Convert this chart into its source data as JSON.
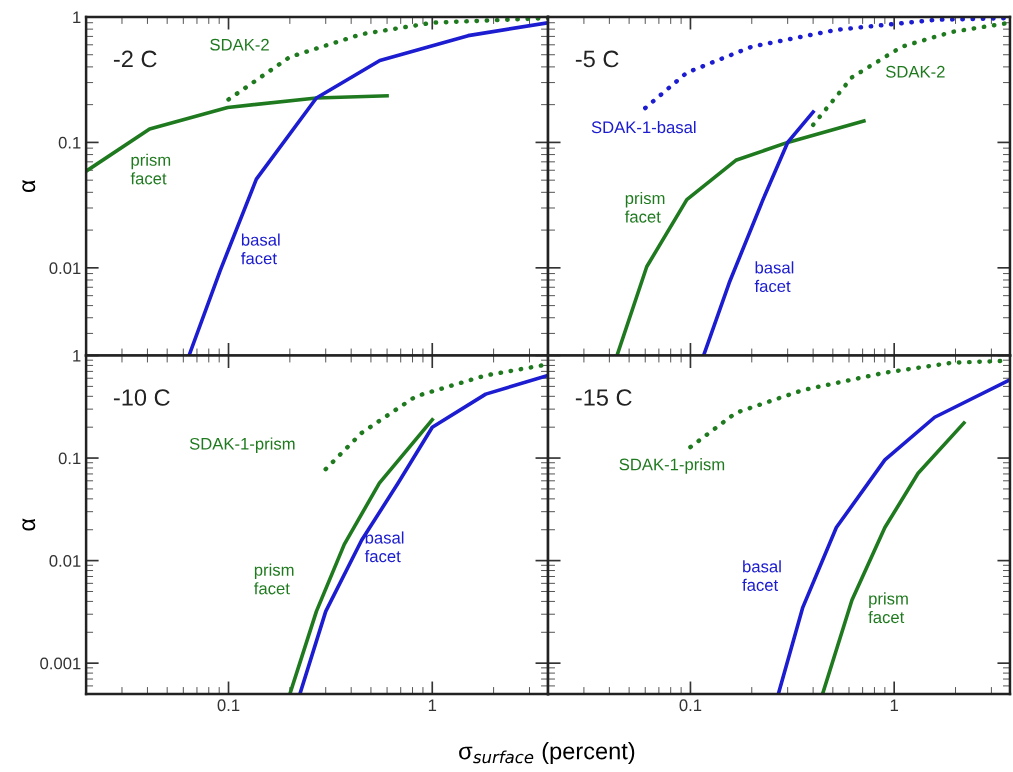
{
  "chart_data": [
    {
      "type": "line",
      "title": "-2 C",
      "ylabel": "α",
      "log": "xy",
      "xlim": [
        0.02,
        3.7
      ],
      "ylim": [
        0.002,
        1
      ],
      "xticks": [
        0.1,
        1
      ],
      "yticks": [
        1,
        0.1,
        0.01
      ],
      "tick_labels": "y",
      "grid": false,
      "legend": false,
      "series": [
        {
          "name": "prism\nfacet",
          "color": "#1f7a1f",
          "line_style": "solid",
          "x": [
            0.02,
            0.041,
            0.099,
            0.27,
            0.6
          ],
          "values": [
            0.059,
            0.128,
            0.19,
            0.226,
            0.235
          ]
        },
        {
          "name": "basal\nfacet",
          "color": "#1c1cd0",
          "line_style": "solid",
          "x": [
            0.064,
            0.091,
            0.137,
            0.27,
            0.553,
            1.5,
            3.7
          ],
          "values": [
            0.002,
            0.0095,
            0.051,
            0.226,
            0.45,
            0.71,
            0.9
          ]
        },
        {
          "name": "SDAK-2",
          "color": "#1f7a1f",
          "line_style": "dotted",
          "x": [
            0.1,
            0.2,
            0.45,
            1.0,
            3.7
          ],
          "values": [
            0.22,
            0.48,
            0.73,
            0.9,
            0.98
          ]
        }
      ]
    },
    {
      "type": "line",
      "title": "-5 C",
      "log": "xy",
      "xlim": [
        0.02,
        3.7
      ],
      "ylim": [
        0.002,
        1
      ],
      "xticks": [
        0.1,
        1
      ],
      "yticks": [
        1,
        0.1,
        0.01
      ],
      "tick_labels": false,
      "grid": false,
      "legend": false,
      "series": [
        {
          "name": "SDAK-1-basal",
          "color": "#1c1cd0",
          "line_style": "dotted",
          "x": [
            0.06,
            0.096,
            0.2,
            0.52,
            1.6,
            3.7
          ],
          "values": [
            0.188,
            0.36,
            0.58,
            0.79,
            0.95,
            0.98
          ]
        },
        {
          "name": "SDAK-2",
          "color": "#1f7a1f",
          "line_style": "dotted",
          "x": [
            0.4,
            0.62,
            1.09,
            1.92,
            3.7
          ],
          "values": [
            0.138,
            0.33,
            0.58,
            0.76,
            0.9
          ]
        },
        {
          "name": "prism\nfacet",
          "color": "#1f7a1f",
          "line_style": "solid",
          "x": [
            0.0436,
            0.061,
            0.096,
            0.167,
            0.3,
            0.71
          ],
          "values": [
            0.002,
            0.0102,
            0.035,
            0.072,
            0.1,
            0.148
          ]
        },
        {
          "name": "basal\nfacet",
          "color": "#1c1cd0",
          "line_style": "solid",
          "x": [
            0.116,
            0.155,
            0.227,
            0.3,
            0.4
          ],
          "values": [
            0.002,
            0.0076,
            0.035,
            0.1,
            0.175
          ]
        }
      ]
    },
    {
      "type": "line",
      "title": "-10 C",
      "ylabel": "α",
      "xlabel": "σ$_{surface}$ (percent)",
      "log": "xy",
      "xlim": [
        0.02,
        3.7
      ],
      "ylim": [
        0.0005,
        1
      ],
      "xticks": [
        0.1,
        1
      ],
      "yticks": [
        1,
        0.1,
        0.01,
        0.001
      ],
      "grid": false,
      "legend": false,
      "series": [
        {
          "name": "SDAK-1-prism",
          "color": "#1f7a1f",
          "line_style": "dotted",
          "x": [
            0.3,
            0.45,
            0.83,
            1.83,
            3.7
          ],
          "values": [
            0.078,
            0.176,
            0.4,
            0.64,
            0.82
          ]
        },
        {
          "name": "prism\nfacet",
          "color": "#1f7a1f",
          "line_style": "solid",
          "x": [
            0.2,
            0.27,
            0.37,
            0.55,
            1.0
          ],
          "values": [
            0.0005,
            0.0032,
            0.0144,
            0.057,
            0.236
          ]
        },
        {
          "name": "basal\nfacet",
          "color": "#1c1cd0",
          "line_style": "solid",
          "x": [
            0.224,
            0.3,
            0.45,
            0.68,
            1.0,
            1.83,
            3.7
          ],
          "values": [
            0.0005,
            0.0032,
            0.0158,
            0.057,
            0.2,
            0.42,
            0.64
          ]
        }
      ]
    },
    {
      "type": "line",
      "title": "-15 C",
      "log": "xy",
      "xlim": [
        0.02,
        3.7
      ],
      "ylim": [
        0.0005,
        1
      ],
      "xticks": [
        0.1,
        1
      ],
      "yticks": [
        1,
        0.1,
        0.01,
        0.001
      ],
      "tick_labels": "x",
      "grid": false,
      "legend": false,
      "series": [
        {
          "name": "SDAK-1-prism",
          "color": "#1f7a1f",
          "line_style": "dotted",
          "x": [
            0.1,
            0.167,
            0.356,
            0.9,
            1.92,
            3.7
          ],
          "values": [
            0.128,
            0.276,
            0.46,
            0.68,
            0.85,
            0.89
          ]
        },
        {
          "name": "basal\nfacet",
          "color": "#1c1cd0",
          "line_style": "solid",
          "x": [
            0.27,
            0.356,
            0.52,
            0.9,
            1.58,
            3.7
          ],
          "values": [
            0.0005,
            0.0035,
            0.021,
            0.096,
            0.25,
            0.58
          ]
        },
        {
          "name": "prism\nfacet",
          "color": "#1f7a1f",
          "line_style": "solid",
          "x": [
            0.445,
            0.62,
            0.9,
            1.31,
            2.2
          ],
          "values": [
            0.0005,
            0.0041,
            0.021,
            0.071,
            0.22
          ]
        }
      ]
    }
  ]
}
